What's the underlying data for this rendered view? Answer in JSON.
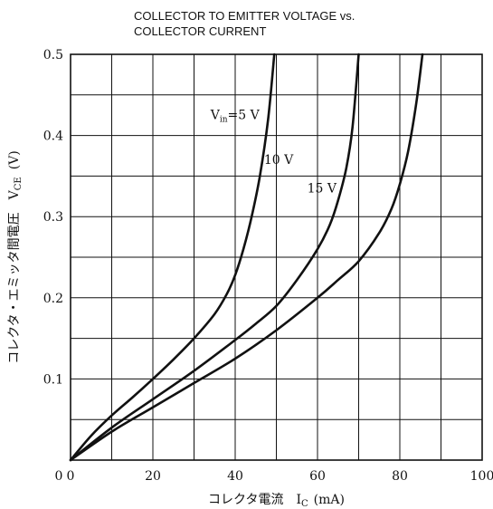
{
  "chart_data": {
    "type": "line",
    "title_lines": [
      "COLLECTOR TO EMITTER VOLTAGE vs.",
      "COLLECTOR CURRENT"
    ],
    "xlabel": "コレクタ電流　I",
    "xlabel_subscript": "C",
    "xlabel_unit": "(mA)",
    "ylabel": "コレクタ・エミッタ間電圧　V",
    "ylabel_subscript": "CE",
    "ylabel_unit": "(V)",
    "xlim": [
      0,
      100
    ],
    "ylim": [
      0,
      0.5
    ],
    "x_major_ticks": [
      0,
      20,
      40,
      60,
      80,
      100
    ],
    "x_tick_labels": [
      "0",
      "20",
      "40",
      "60",
      "80",
      "100"
    ],
    "y_tick_values": [
      0.1,
      0.2,
      0.3,
      0.4,
      0.5
    ],
    "y_tick_labels": [
      "0.1",
      "0.2",
      "0.3",
      "0.4",
      "0.5"
    ],
    "y_zero_label": "0",
    "x_grid_step": 10,
    "y_grid_step": 0.05,
    "grid": true,
    "series": [
      {
        "name": "V_in=5 V",
        "label_main": "V",
        "label_sub": "in",
        "label_rest": "=5 V",
        "x": [
          0,
          5,
          10,
          15,
          20,
          25,
          30,
          35,
          38,
          40,
          42,
          44,
          46,
          48,
          49.5
        ],
        "y": [
          0,
          0.03,
          0.055,
          0.077,
          0.1,
          0.124,
          0.15,
          0.18,
          0.205,
          0.228,
          0.26,
          0.3,
          0.35,
          0.42,
          0.5
        ]
      },
      {
        "name": "10 V",
        "label_main": "10 V",
        "x": [
          0,
          10,
          20,
          30,
          40,
          45,
          50,
          55,
          60,
          63,
          65,
          67,
          68.5,
          70
        ],
        "y": [
          0,
          0.04,
          0.075,
          0.11,
          0.148,
          0.168,
          0.19,
          0.222,
          0.26,
          0.29,
          0.32,
          0.36,
          0.41,
          0.5
        ]
      },
      {
        "name": "15 V",
        "label_main": "15 V",
        "x": [
          0,
          10,
          20,
          30,
          40,
          50,
          60,
          65,
          70,
          75,
          78,
          80,
          82,
          84,
          85.5
        ],
        "y": [
          0,
          0.035,
          0.065,
          0.095,
          0.125,
          0.16,
          0.2,
          0.222,
          0.245,
          0.28,
          0.31,
          0.34,
          0.38,
          0.44,
          0.5
        ]
      }
    ]
  }
}
